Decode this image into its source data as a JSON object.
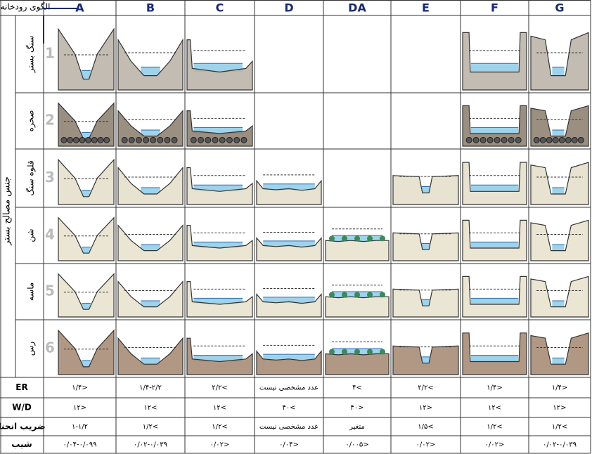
{
  "header": {
    "corner": "الگوی رودخانه",
    "material_label": "جنس مصالح بستر"
  },
  "columns": [
    "A",
    "B",
    "C",
    "D",
    "DA",
    "E",
    "F",
    "G"
  ],
  "rows": [
    {
      "name": "سنگ بستر",
      "number": "1"
    },
    {
      "name": "صخره",
      "number": "2"
    },
    {
      "name": "قلوه سنگ",
      "number": "3"
    },
    {
      "name": "شن",
      "number": "4"
    },
    {
      "name": "ماسه",
      "number": "5"
    },
    {
      "name": "رس",
      "number": "6"
    }
  ],
  "metrics": [
    {
      "name": "ER",
      "values": [
        "<۱/۴",
        "۱/۴-۲/۲",
        ">۲/۲",
        "عدد مشخصی نیست",
        ">۴",
        ">۲/۲",
        "<۱/۴",
        "<۱/۴"
      ]
    },
    {
      "name": "W/D",
      "values": [
        "<۱۲",
        ">۱۲",
        ">۱۲",
        ">۴۰",
        "<۴۰",
        "<۱۲",
        ">۱۲",
        "<۱۲"
      ]
    },
    {
      "name": "ضریب انحنا",
      "values": [
        "۱-۱/۲",
        ">۱/۲",
        ">۱/۲",
        "عدد مشخصی نیست",
        "متغیر",
        ">۱/۵",
        ">۱/۲",
        ">۱/۲"
      ]
    },
    {
      "name": "شیب",
      "values": [
        "۰/۰۴-۰/۰۹۹",
        "۰/۰۲-۰/۰۳۹",
        "<۰/۰۲",
        "<۰/۰۴",
        "<۰/۰۰۵",
        "<۰/۰۲",
        "<۰/۰۲",
        "۰/۰۲-۰/۰۳۹"
      ]
    }
  ]
}
